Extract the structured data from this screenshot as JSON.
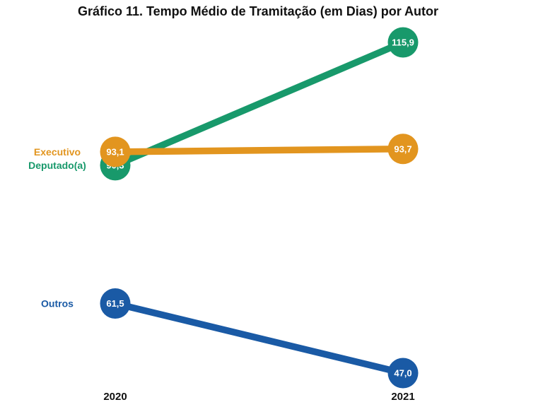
{
  "page": {
    "background": "#ffffff",
    "text_color": "#111111"
  },
  "chart_data": {
    "type": "line",
    "variant": "slope-chart",
    "title": "Gráfico 11. Tempo Médio de Tramitação (em Dias) por Autor",
    "xlabel": "",
    "ylabel": "",
    "categories": [
      "2020",
      "2021"
    ],
    "series": [
      {
        "name": "Executivo",
        "color": "#E2951F",
        "values": [
          93.1,
          93.7
        ],
        "value_labels": [
          "93,1",
          "93,7"
        ]
      },
      {
        "name": "Deputado(a)",
        "color": "#18996B",
        "values": [
          90.3,
          115.9
        ],
        "value_labels": [
          "90,3",
          "115,9"
        ]
      },
      {
        "name": "Outros",
        "color": "#1A5AA5",
        "values": [
          61.5,
          47.0
        ],
        "value_labels": [
          "61,5",
          "47,0"
        ]
      }
    ],
    "value_range": [
      47.0,
      115.9
    ],
    "grid": false,
    "axes_visible": false,
    "legend_position": "left-inline-labels",
    "value_label_text_color": "#ffffff",
    "axis_label_color": "#111111"
  }
}
